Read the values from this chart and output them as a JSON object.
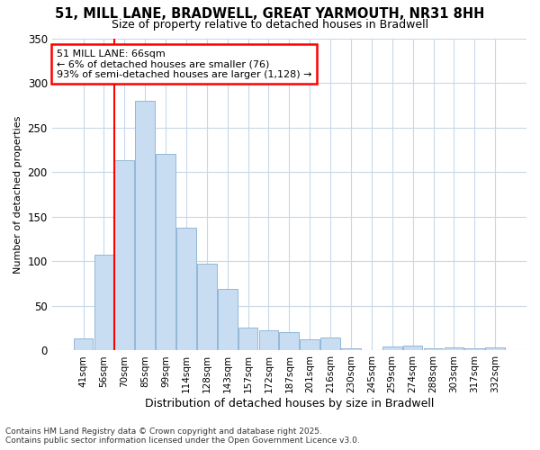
{
  "title": "51, MILL LANE, BRADWELL, GREAT YARMOUTH, NR31 8HH",
  "subtitle": "Size of property relative to detached houses in Bradwell",
  "xlabel": "Distribution of detached houses by size in Bradwell",
  "ylabel": "Number of detached properties",
  "categories": [
    "41sqm",
    "56sqm",
    "70sqm",
    "85sqm",
    "99sqm",
    "114sqm",
    "128sqm",
    "143sqm",
    "157sqm",
    "172sqm",
    "187sqm",
    "201sqm",
    "216sqm",
    "230sqm",
    "245sqm",
    "259sqm",
    "274sqm",
    "288sqm",
    "303sqm",
    "317sqm",
    "332sqm"
  ],
  "values": [
    14,
    107,
    213,
    280,
    220,
    138,
    97,
    69,
    26,
    23,
    21,
    13,
    15,
    2,
    0,
    4,
    6,
    2,
    3,
    2,
    3
  ],
  "bar_color": "#c9ddf2",
  "bar_edge_color": "#92b8d8",
  "background_color": "#ffffff",
  "grid_color": "#c8d8e8",
  "annotation_title": "51 MILL LANE: 66sqm",
  "annotation_line1": "← 6% of detached houses are smaller (76)",
  "annotation_line2": "93% of semi-detached houses are larger (1,128) →",
  "footnote1": "Contains HM Land Registry data © Crown copyright and database right 2025.",
  "footnote2": "Contains public sector information licensed under the Open Government Licence v3.0.",
  "ylim": [
    0,
    350
  ],
  "yticks": [
    0,
    50,
    100,
    150,
    200,
    250,
    300,
    350
  ],
  "red_line_index": 2
}
